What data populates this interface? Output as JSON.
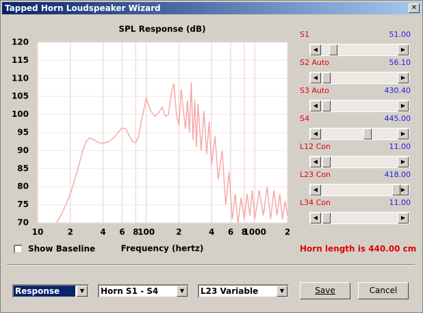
{
  "window": {
    "title": "Tapped Horn Loudspeaker Wizard"
  },
  "chart_data": {
    "type": "line",
    "title": "SPL Response (dB)",
    "x_label": "Frequency (hertz)",
    "x": [
      15,
      17,
      20,
      23,
      26,
      28,
      30,
      33,
      36,
      40,
      45,
      50,
      55,
      60,
      65,
      70,
      75,
      80,
      85,
      90,
      100,
      110,
      120,
      130,
      140,
      150,
      160,
      170,
      180,
      190,
      200,
      210,
      220,
      230,
      240,
      250,
      260,
      270,
      280,
      290,
      300,
      320,
      340,
      360,
      380,
      400,
      430,
      460,
      500,
      540,
      580,
      620,
      660,
      700,
      750,
      800,
      850,
      900,
      950,
      1000,
      1100,
      1200,
      1300,
      1400,
      1500,
      1600,
      1700,
      1800,
      1900,
      2000
    ],
    "values": [
      70,
      73,
      78,
      84,
      90,
      92.5,
      93.5,
      93,
      92.3,
      92,
      92.5,
      93.5,
      95,
      96.3,
      96,
      94,
      92.5,
      92.2,
      94,
      98,
      104.5,
      101,
      99.5,
      100.5,
      102,
      99.5,
      100,
      106,
      108.5,
      100,
      97,
      107,
      101,
      96,
      104,
      95,
      109,
      93,
      104,
      91,
      103,
      90,
      101,
      89,
      98,
      86,
      94,
      82,
      90,
      75,
      84,
      71,
      78,
      70,
      77,
      71,
      78,
      72,
      79,
      71,
      79,
      72,
      80,
      71,
      79,
      72,
      78,
      71,
      76,
      72
    ],
    "color": "#f7a8a8",
    "log_x": true,
    "grid": true,
    "xlim": [
      10,
      2000
    ],
    "ylim": [
      70,
      120
    ],
    "xticks": [
      10,
      {
        "value": 20,
        "label": "2"
      },
      {
        "value": 40,
        "label": "4"
      },
      {
        "value": 60,
        "label": "6"
      },
      {
        "value": 80,
        "label": "8"
      },
      100,
      {
        "value": 200,
        "label": "2"
      },
      {
        "value": 400,
        "label": "4"
      },
      {
        "value": 600,
        "label": "6"
      },
      {
        "value": 800,
        "label": "8"
      },
      1000,
      {
        "value": 2000,
        "label": "2"
      }
    ],
    "yticks": [
      70,
      75,
      80,
      85,
      90,
      95,
      100,
      105,
      110,
      115,
      120
    ]
  },
  "sliders": [
    {
      "label": "S1",
      "value": "51.00"
    },
    {
      "label": "S2 Auto",
      "value": "56.10"
    },
    {
      "label": "S3 Auto",
      "value": "430.40"
    },
    {
      "label": "S4",
      "value": "445.00"
    },
    {
      "label": "L12 Con",
      "value": "11.00"
    },
    {
      "label": "L23 Con",
      "value": "418.00"
    },
    {
      "label": "L34 Con",
      "value": "11.00"
    }
  ],
  "checkbox": {
    "label": "Show Baseline"
  },
  "status": "Horn length is 440.00 cm",
  "dropdowns": [
    "Response",
    "Horn S1 - S4",
    "L23 Variable"
  ],
  "buttons": [
    "Save",
    "Cancel"
  ]
}
